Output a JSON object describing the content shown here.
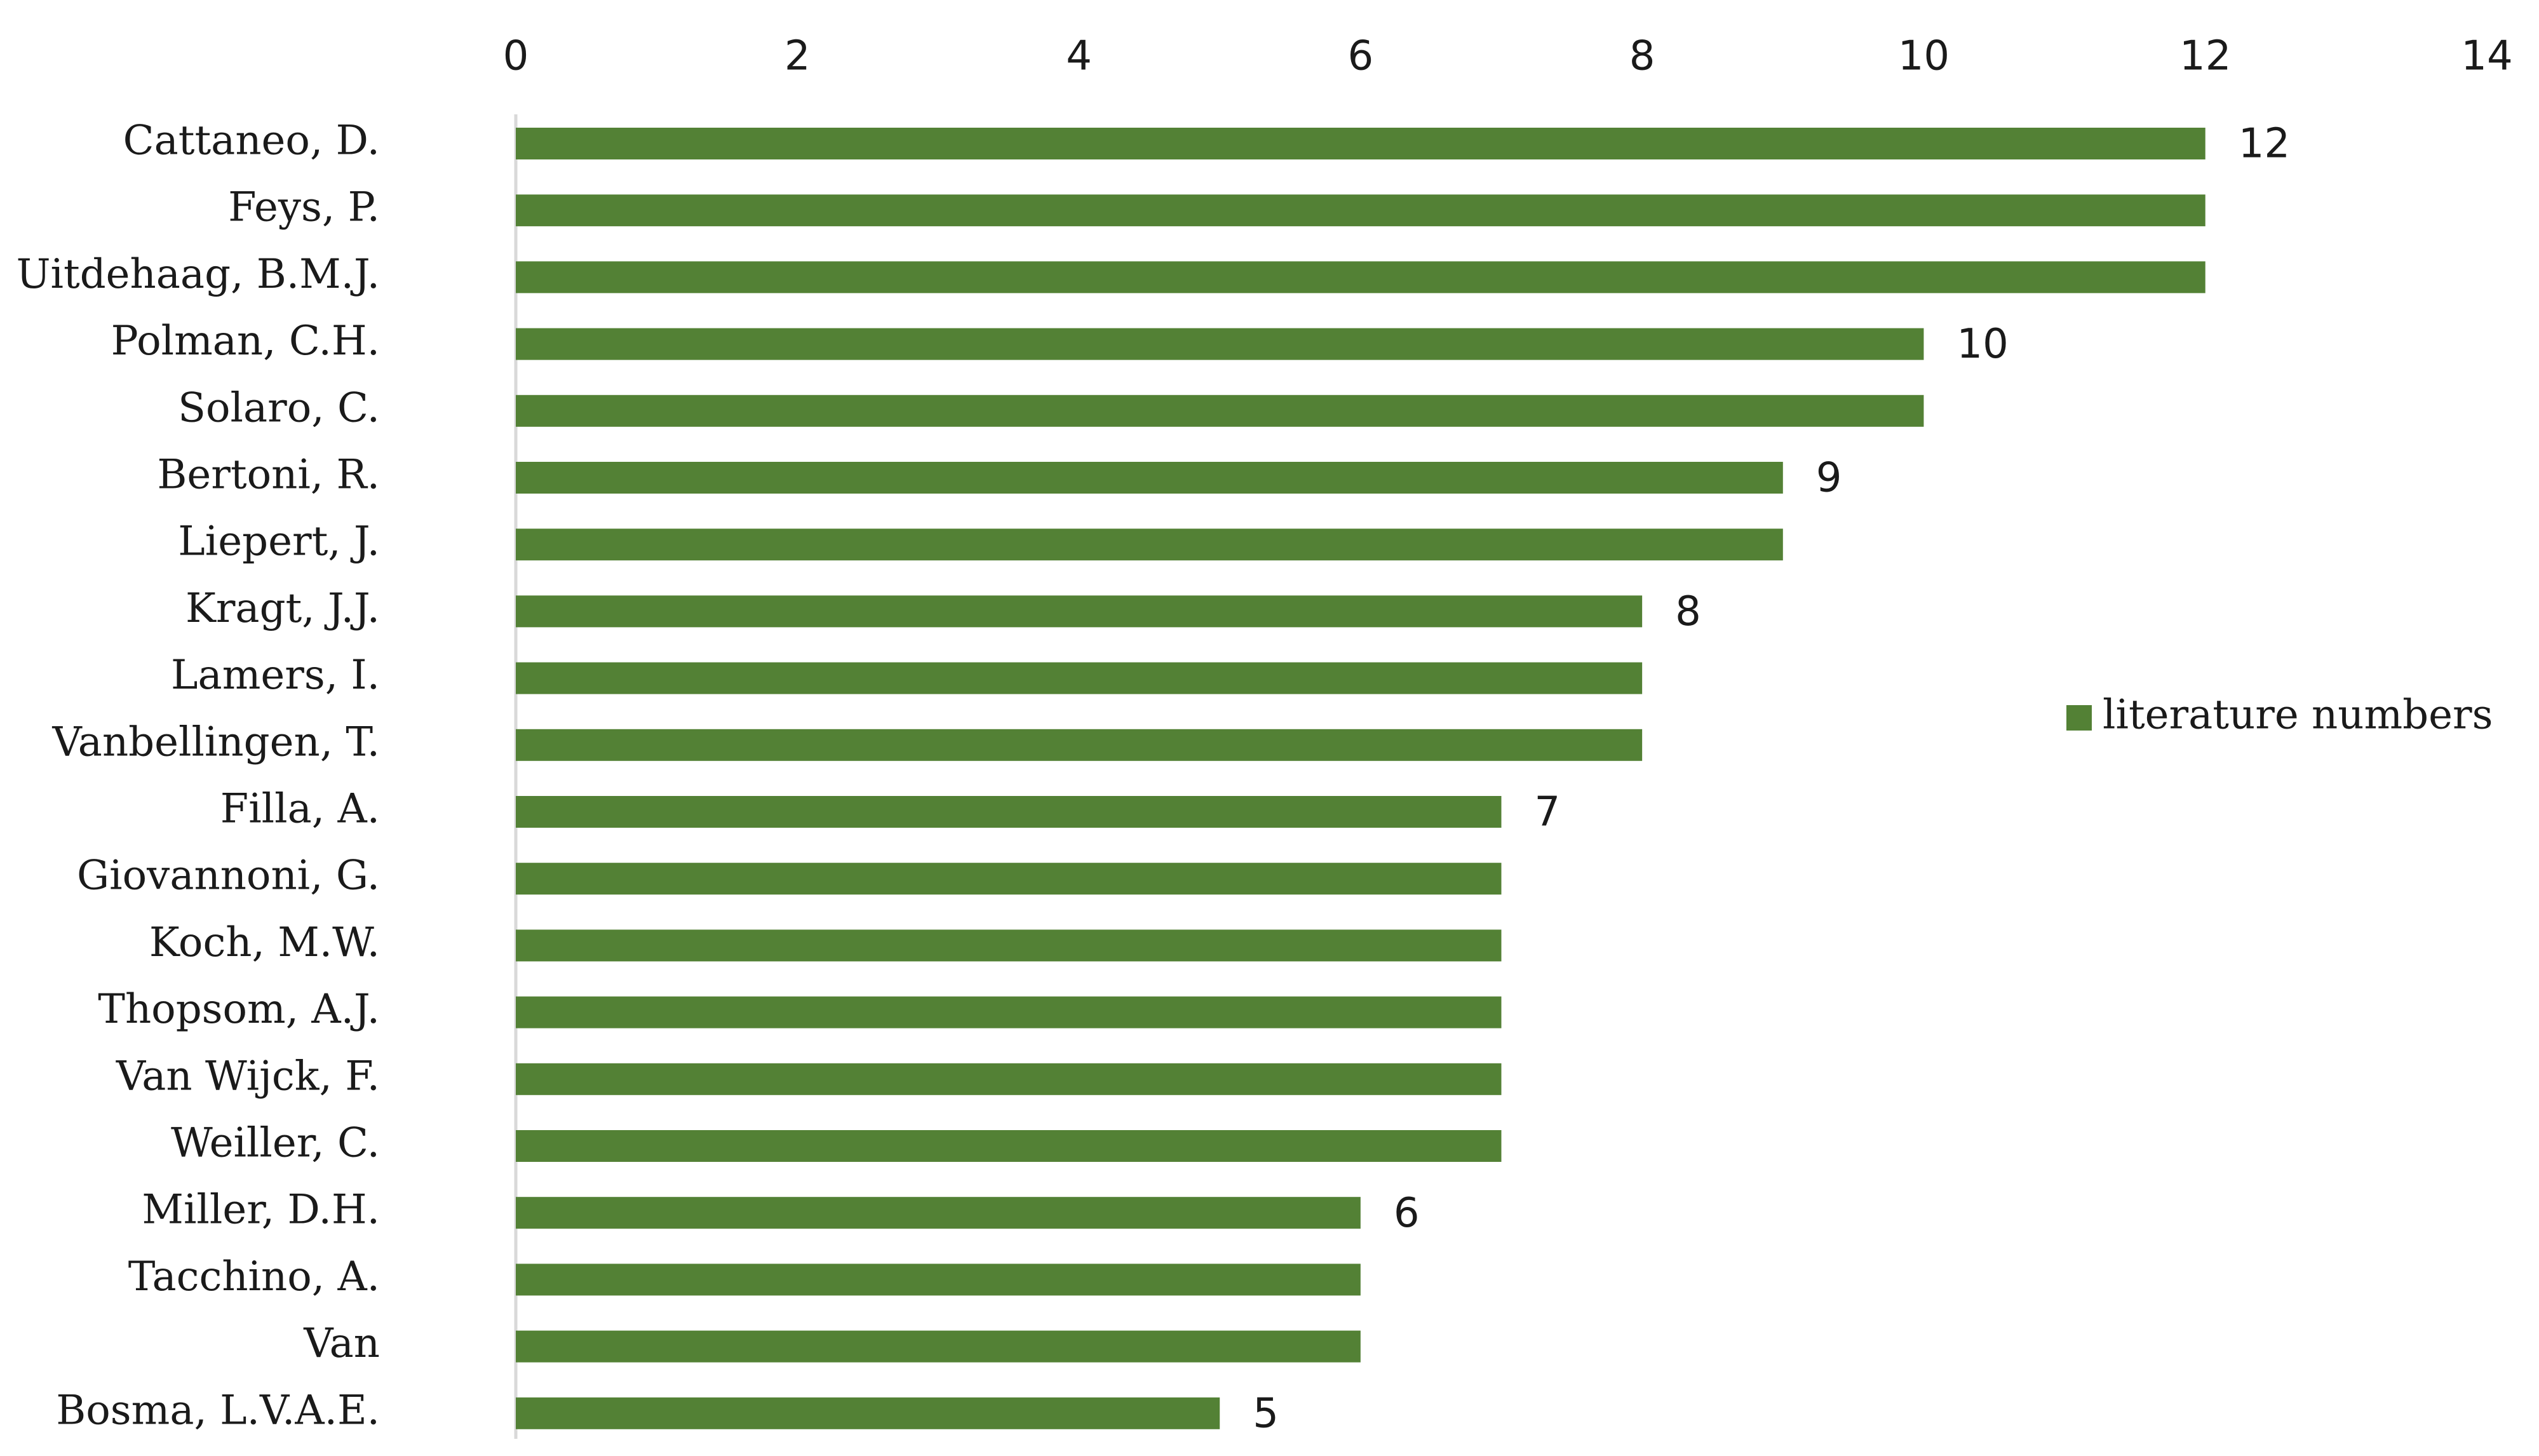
{
  "chart_data": {
    "type": "bar",
    "orientation": "horizontal",
    "title": "",
    "xlabel": "",
    "ylabel": "",
    "xlim": [
      0,
      14
    ],
    "x_ticks": [
      0,
      2,
      4,
      6,
      8,
      10,
      12,
      14
    ],
    "grid": false,
    "legend_position": "right",
    "categories": [
      "Cattaneo, D.",
      "Feys, P.",
      "Uitdehaag, B.M.J.",
      "Polman, C.H.",
      "Solaro, C.",
      "Bertoni, R.",
      "Liepert, J.",
      "Kragt, J.J.",
      "Lamers, I.",
      "Vanbellingen, T.",
      "Filla, A.",
      "Giovannoni, G.",
      "Koch, M.W.",
      "Thopsom, A.J.",
      "Van Wijck, F.",
      "Weiller, C.",
      "Miller, D.H.",
      "Tacchino, A.",
      "Van",
      "Bosma, L.V.A.E."
    ],
    "series": [
      {
        "name": "literature numbers",
        "color": "#538135",
        "values": [
          12,
          12,
          12,
          10,
          10,
          9,
          9,
          8,
          8,
          8,
          7,
          7,
          7,
          7,
          7,
          7,
          6,
          6,
          6,
          5
        ]
      }
    ],
    "data_labels": [
      "12",
      "",
      "",
      "10",
      "",
      "9",
      "",
      "8",
      "",
      "",
      "7",
      "",
      "",
      "",
      "",
      "",
      "6",
      "",
      "",
      "5"
    ],
    "axis_color": "#d9d9d9"
  }
}
